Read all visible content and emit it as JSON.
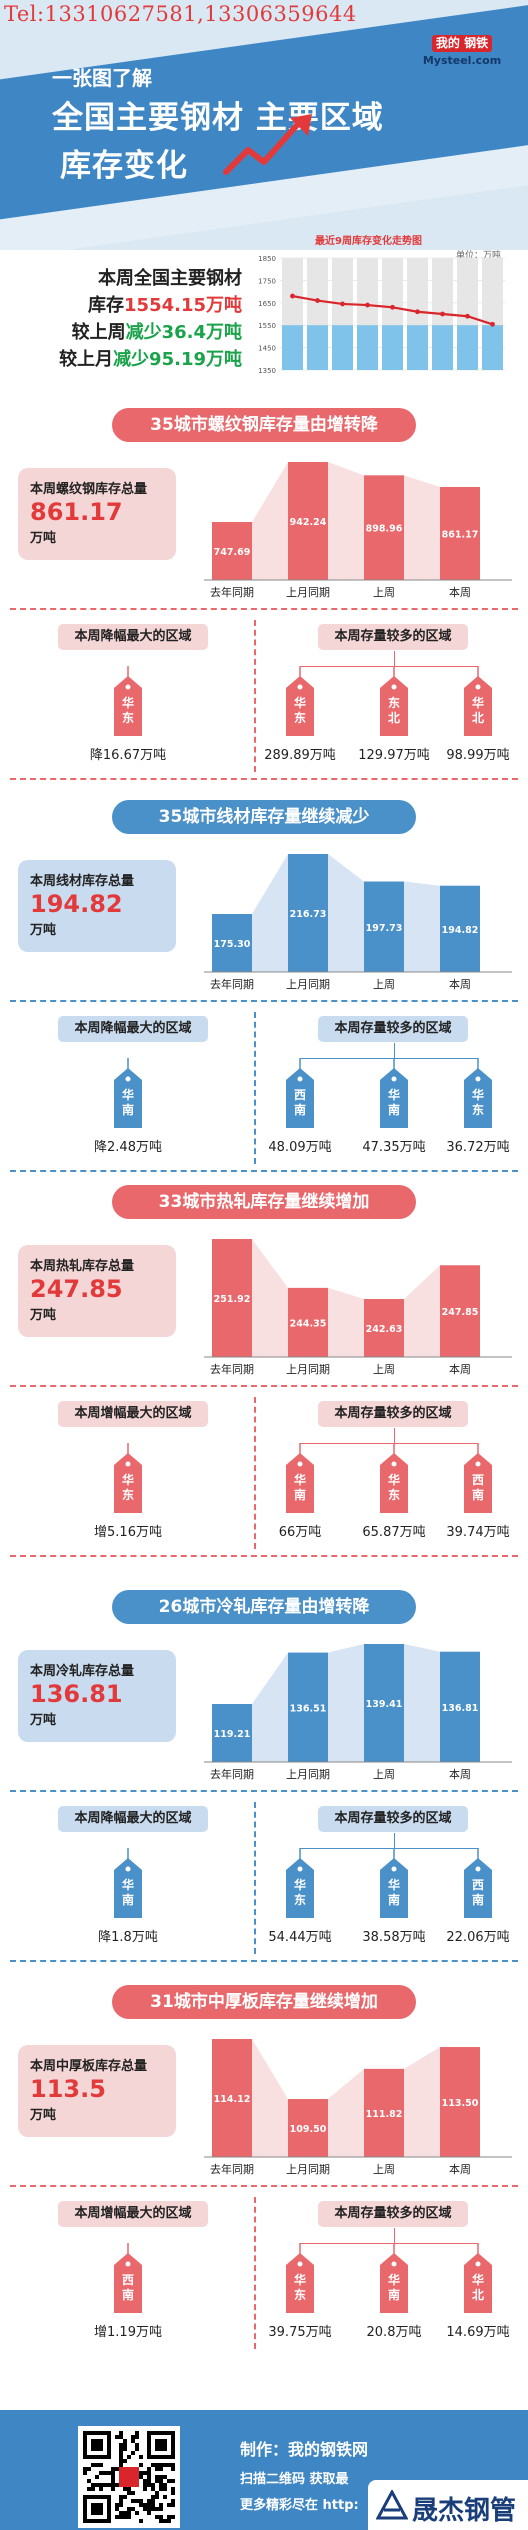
{
  "header": {
    "phone": "Tel:13310627581,13306359644",
    "logo_top": "我的 钢铁",
    "logo_bottom": "Mysteel.com",
    "subtitle": "一张图了解",
    "title_line1": "全国主要钢材 主要区域",
    "title_line2": "库存变化",
    "colors": {
      "band": "#3f87c4",
      "light": "#d9e8f3"
    }
  },
  "summary": {
    "line1": "本周全国主要钢材",
    "line2_prefix": "库存",
    "line2_value": "1554.15万吨",
    "line3_prefix": "较上周",
    "line3_value": "减少36.4万吨",
    "line4_prefix": "较上月",
    "line4_value": "减少95.19万吨"
  },
  "chart_data": {
    "type": "bar",
    "title": "最近9周库存变化走势图",
    "unit": "单位：万吨",
    "ylim": [
      1350,
      1850
    ],
    "yticks": [
      "1850",
      "1750",
      "1650",
      "1550",
      "1450",
      "1350"
    ],
    "values": [
      1680,
      1660,
      1645,
      1640,
      1630,
      1610,
      1600,
      1590,
      1554.15
    ]
  },
  "sections": [
    {
      "banner": "35城市螺纹钢库存量由增转降",
      "theme": "red",
      "total_label": "本周螺纹钢库存总量",
      "total_value": "861.17",
      "total_unit": "万吨",
      "categories": [
        "去年同期",
        "上月同期",
        "上周",
        "本周"
      ],
      "values": [
        747.69,
        942.24,
        898.96,
        861.17
      ],
      "value_labels": [
        "747.69",
        "942.24",
        "898.96",
        "861.17"
      ],
      "left_head": "本周降幅最大的区域",
      "left_region": "华东",
      "left_value": "降16.67万吨",
      "right_head": "本周存量较多的区域",
      "right_regions": [
        {
          "name": "华东",
          "value": "289.89万吨"
        },
        {
          "name": "东北",
          "value": "129.97万吨"
        },
        {
          "name": "华北",
          "value": "98.99万吨"
        }
      ]
    },
    {
      "banner": "35城市线材库存量继续减少",
      "theme": "blue",
      "total_label": "本周线材库存总量",
      "total_value": "194.82",
      "total_unit": "万吨",
      "categories": [
        "去年同期",
        "上月同期",
        "上周",
        "本周"
      ],
      "values": [
        175.3,
        216.73,
        197.73,
        194.82
      ],
      "value_labels": [
        "175.30",
        "216.73",
        "197.73",
        "194.82"
      ],
      "left_head": "本周降幅最大的区域",
      "left_region": "华南",
      "left_value": "降2.48万吨",
      "right_head": "本周存量较多的区域",
      "right_regions": [
        {
          "name": "西南",
          "value": "48.09万吨"
        },
        {
          "name": "华南",
          "value": "47.35万吨"
        },
        {
          "name": "华东",
          "value": "36.72万吨"
        }
      ]
    },
    {
      "banner": "33城市热轧库存量继续增加",
      "theme": "red",
      "total_label": "本周热轧库存总量",
      "total_value": "247.85",
      "total_unit": "万吨",
      "categories": [
        "去年同期",
        "上月同期",
        "上周",
        "本周"
      ],
      "values": [
        251.92,
        244.35,
        242.63,
        247.85
      ],
      "value_labels": [
        "251.92",
        "244.35",
        "242.63",
        "247.85"
      ],
      "left_head": "本周增幅最大的区域",
      "left_region": "华东",
      "left_value": "增5.16万吨",
      "right_head": "本周存量较多的区域",
      "right_regions": [
        {
          "name": "华南",
          "value": "66万吨"
        },
        {
          "name": "华东",
          "value": "65.87万吨"
        },
        {
          "name": "西南",
          "value": "39.74万吨"
        }
      ]
    },
    {
      "banner": "26城市冷轧库存量由增转降",
      "theme": "blue",
      "total_label": "本周冷轧库存总量",
      "total_value": "136.81",
      "total_unit": "万吨",
      "categories": [
        "去年同期",
        "上月同期",
        "上周",
        "本周"
      ],
      "values": [
        119.21,
        136.51,
        139.41,
        136.81
      ],
      "value_labels": [
        "119.21",
        "136.51",
        "139.41",
        "136.81"
      ],
      "left_head": "本周降幅最大的区域",
      "left_region": "华南",
      "left_value": "降1.8万吨",
      "right_head": "本周存量较多的区域",
      "right_regions": [
        {
          "name": "华东",
          "value": "54.44万吨"
        },
        {
          "name": "华南",
          "value": "38.58万吨"
        },
        {
          "name": "西南",
          "value": "22.06万吨"
        }
      ]
    },
    {
      "banner": "31城市中厚板库存量继续增加",
      "theme": "red",
      "total_label": "本周中厚板库存总量",
      "total_value": "113.5",
      "total_unit": "万吨",
      "categories": [
        "去年同期",
        "上月同期",
        "上周",
        "本周"
      ],
      "values": [
        114.12,
        109.5,
        111.82,
        113.5
      ],
      "value_labels": [
        "114.12",
        "109.50",
        "111.82",
        "113.50"
      ],
      "left_head": "本周增幅最大的区域",
      "left_region": "西南",
      "left_value": "增1.19万吨",
      "right_head": "本周存量较多的区域",
      "right_regions": [
        {
          "name": "华东",
          "value": "39.75万吨"
        },
        {
          "name": "华南",
          "value": "20.8万吨"
        },
        {
          "name": "华北",
          "value": "14.69万吨"
        }
      ]
    }
  ],
  "footer": {
    "producer": "制作：我的钢铁网",
    "scan": "扫描二维码 获取最",
    "more": "更多精彩尽在 http:",
    "brand": "晟杰钢管"
  },
  "theme_colors": {
    "red": "#e8686c",
    "blue": "#4a90c9",
    "red_light": "#f5d6d6",
    "blue_light": "#c9dbef"
  }
}
